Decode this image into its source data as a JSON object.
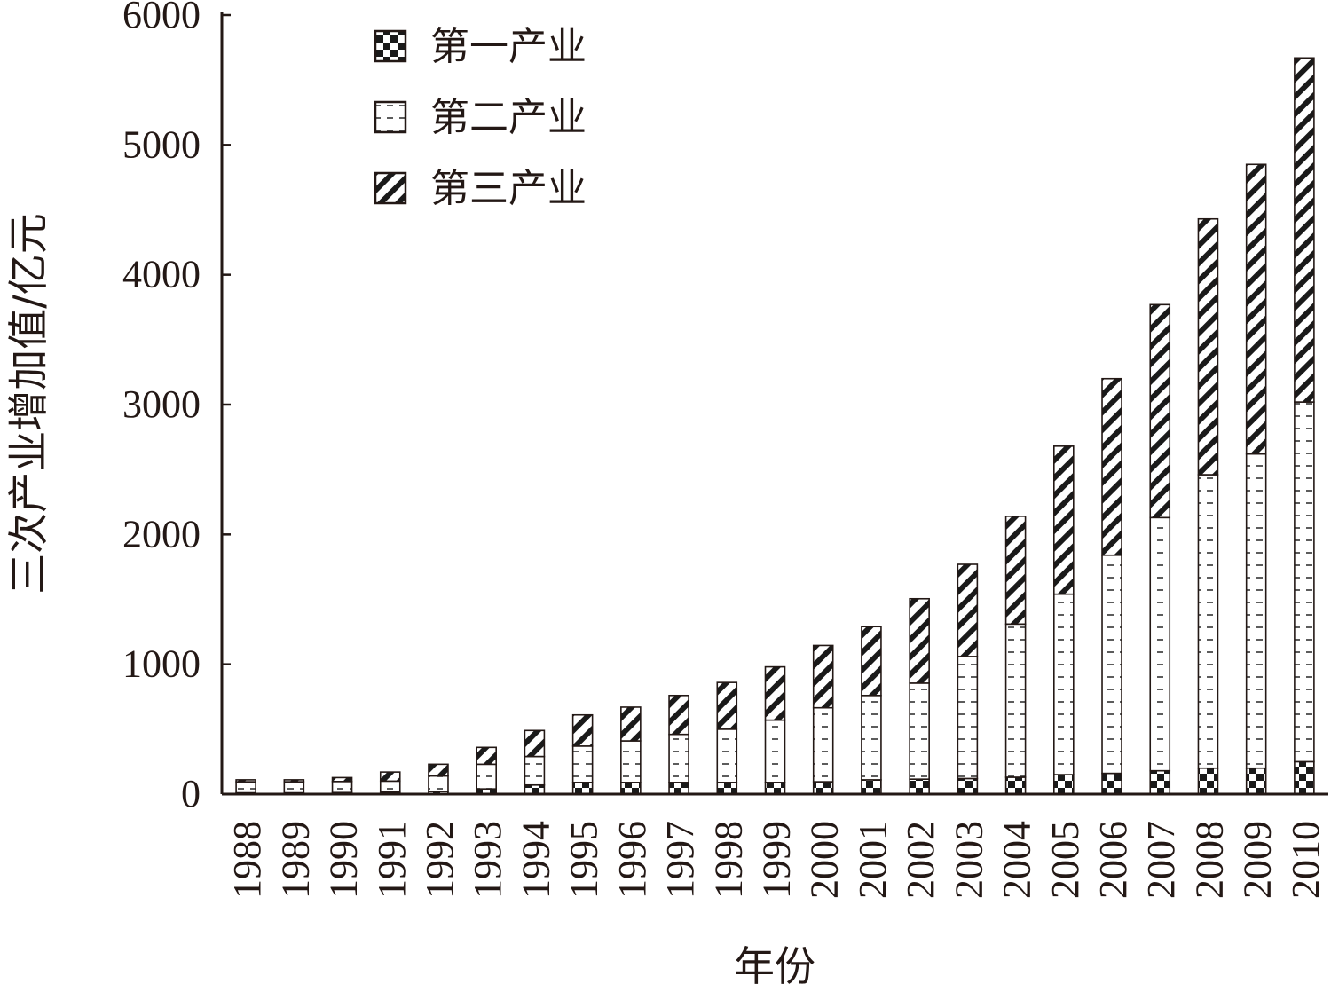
{
  "chart_data": {
    "type": "bar",
    "stacked": true,
    "title": "",
    "xlabel": "年份",
    "ylabel": "三次产业增加值/亿元",
    "ylim": [
      0,
      6000
    ],
    "yticks": [
      0,
      1000,
      2000,
      3000,
      4000,
      5000,
      6000
    ],
    "grid": false,
    "legend_position": "top-left",
    "categories": [
      "1988",
      "1989",
      "1990",
      "1991",
      "1992",
      "1993",
      "1994",
      "1995",
      "1996",
      "1997",
      "1998",
      "1999",
      "2000",
      "2001",
      "2002",
      "2003",
      "2004",
      "2005",
      "2006",
      "2007",
      "2008",
      "2009",
      "2010"
    ],
    "series": [
      {
        "name": "第一产业",
        "pattern": "checker",
        "values": [
          10,
          10,
          12,
          15,
          20,
          40,
          70,
          90,
          90,
          90,
          90,
          90,
          95,
          110,
          115,
          120,
          130,
          150,
          160,
          180,
          200,
          200,
          250
        ]
      },
      {
        "name": "第二产业",
        "pattern": "dash",
        "values": [
          85,
          85,
          85,
          85,
          120,
          190,
          220,
          280,
          320,
          370,
          410,
          480,
          570,
          650,
          740,
          940,
          1180,
          1390,
          1680,
          1950,
          2260,
          2420,
          2770
        ]
      },
      {
        "name": "第三产业",
        "pattern": "diagonal",
        "values": [
          15,
          15,
          30,
          70,
          90,
          130,
          200,
          240,
          260,
          300,
          360,
          410,
          480,
          530,
          650,
          710,
          830,
          1140,
          1360,
          1640,
          1970,
          2230,
          2650
        ]
      }
    ]
  }
}
